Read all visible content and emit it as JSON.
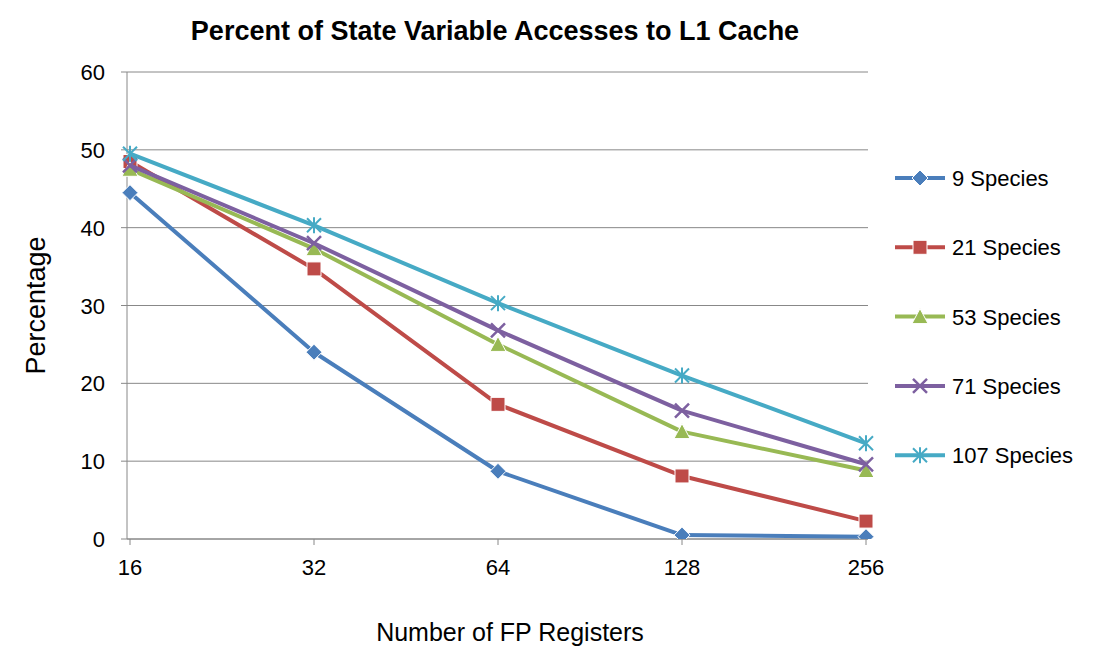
{
  "chart_data": {
    "type": "line",
    "title": "Percent of State Variable Accesses to L1 Cache",
    "x_label": "Number of FP Registers",
    "y_label": "Percentage",
    "categories": [
      "16",
      "32",
      "64",
      "128",
      "256"
    ],
    "series": [
      {
        "name": "9 Species",
        "color": "#4a7ebb",
        "marker": "diamond",
        "line_style": "solid",
        "values": [
          44.5,
          24,
          8.7,
          0.5,
          0.3
        ]
      },
      {
        "name": "21 Species",
        "color": "#be4b48",
        "marker": "square",
        "line_style": "solid",
        "values": [
          48.5,
          34.7,
          17.3,
          8.1,
          2.3
        ]
      },
      {
        "name": "53 Species",
        "color": "#98b954",
        "marker": "triangle",
        "line_style": "solid",
        "values": [
          47.5,
          37.3,
          25,
          13.8,
          8.8
        ]
      },
      {
        "name": "71 Species",
        "color": "#7d60a0",
        "marker": "x",
        "line_style": "solid",
        "values": [
          48,
          38,
          26.8,
          16.5,
          9.6
        ]
      },
      {
        "name": "107 Species",
        "color": "#46aac5",
        "marker": "star",
        "line_style": "solid",
        "values": [
          49.5,
          40.3,
          30.3,
          21,
          12.3
        ]
      }
    ],
    "ylim": [
      0,
      60
    ],
    "yticks": [
      0,
      10,
      20,
      30,
      40,
      50,
      60
    ],
    "grid": true,
    "legend": "right"
  }
}
